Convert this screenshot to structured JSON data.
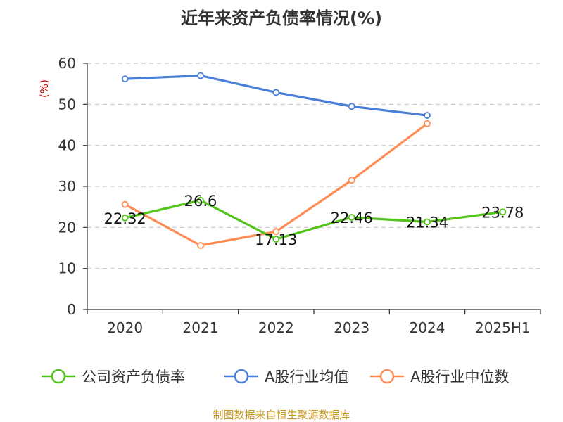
{
  "title": "近年来资产负债率情况(%)",
  "source": "制图数据来自恒生聚源数据库",
  "chart_data": {
    "type": "line",
    "title": "近年来资产负债率情况(%)",
    "ylabel": "(%)",
    "xlabel": "",
    "categories": [
      "2020",
      "2021",
      "2022",
      "2023",
      "2024",
      "2025H1"
    ],
    "ylim": [
      0,
      60
    ],
    "yticks": [
      0,
      10,
      20,
      30,
      40,
      50,
      60
    ],
    "grid": true,
    "legend_position": "bottom",
    "series": [
      {
        "name": "公司资产负债率",
        "color": "#52c41a",
        "labeled": true,
        "values": [
          22.32,
          26.6,
          17.13,
          22.46,
          21.34,
          23.78
        ],
        "labels": [
          "22.32",
          "26.6",
          "17.13",
          "22.46",
          "21.34",
          "23.78"
        ]
      },
      {
        "name": "A股行业均值",
        "color": "#4a7fd8",
        "values": [
          56.2,
          57.0,
          52.9,
          49.5,
          47.3,
          null
        ]
      },
      {
        "name": "A股行业中位数",
        "color": "#ff8c55",
        "values": [
          25.6,
          15.6,
          19.0,
          31.5,
          45.3,
          null
        ]
      }
    ]
  },
  "colors": {
    "axis": "#333333",
    "grid": "#c8c8c8",
    "ylabel": "#cc0000"
  }
}
